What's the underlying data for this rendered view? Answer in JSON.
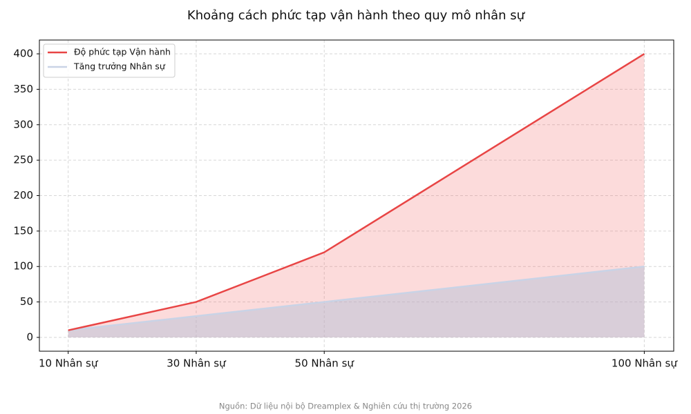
{
  "chart_data": {
    "type": "area-line",
    "title": "Khoảng cách phức tạp vận hành theo quy mô nhân sự",
    "x": [
      10,
      30,
      50,
      100
    ],
    "xticks": [
      {
        "value": 10,
        "label": "10 Nhân sự"
      },
      {
        "value": 30,
        "label": "30 Nhân sự"
      },
      {
        "value": 50,
        "label": "50 Nhân sự"
      },
      {
        "value": 100,
        "label": "100 Nhân sự"
      }
    ],
    "xlim": [
      5.5,
      104.6
    ],
    "ylim": [
      -19.5,
      419.5
    ],
    "yticks": [
      0,
      50,
      100,
      150,
      200,
      250,
      300,
      350,
      400
    ],
    "grid": true,
    "legend": "upper-left",
    "series": [
      {
        "name": "Độ phức tạp Vận hành",
        "color": "#e84545",
        "fill": "rgba(240,90,90,0.22)",
        "values": [
          10,
          50,
          120,
          400
        ]
      },
      {
        "name": "Tăng trưởng Nhân sự",
        "color": "#c9d3e6",
        "fill": "rgba(176,190,215,0.45)",
        "values": [
          10,
          30,
          50,
          100
        ]
      }
    ],
    "source": "Nguồn: Dữ liệu nội bộ Dreamplex & Nghiên cứu thị trường 2026"
  }
}
